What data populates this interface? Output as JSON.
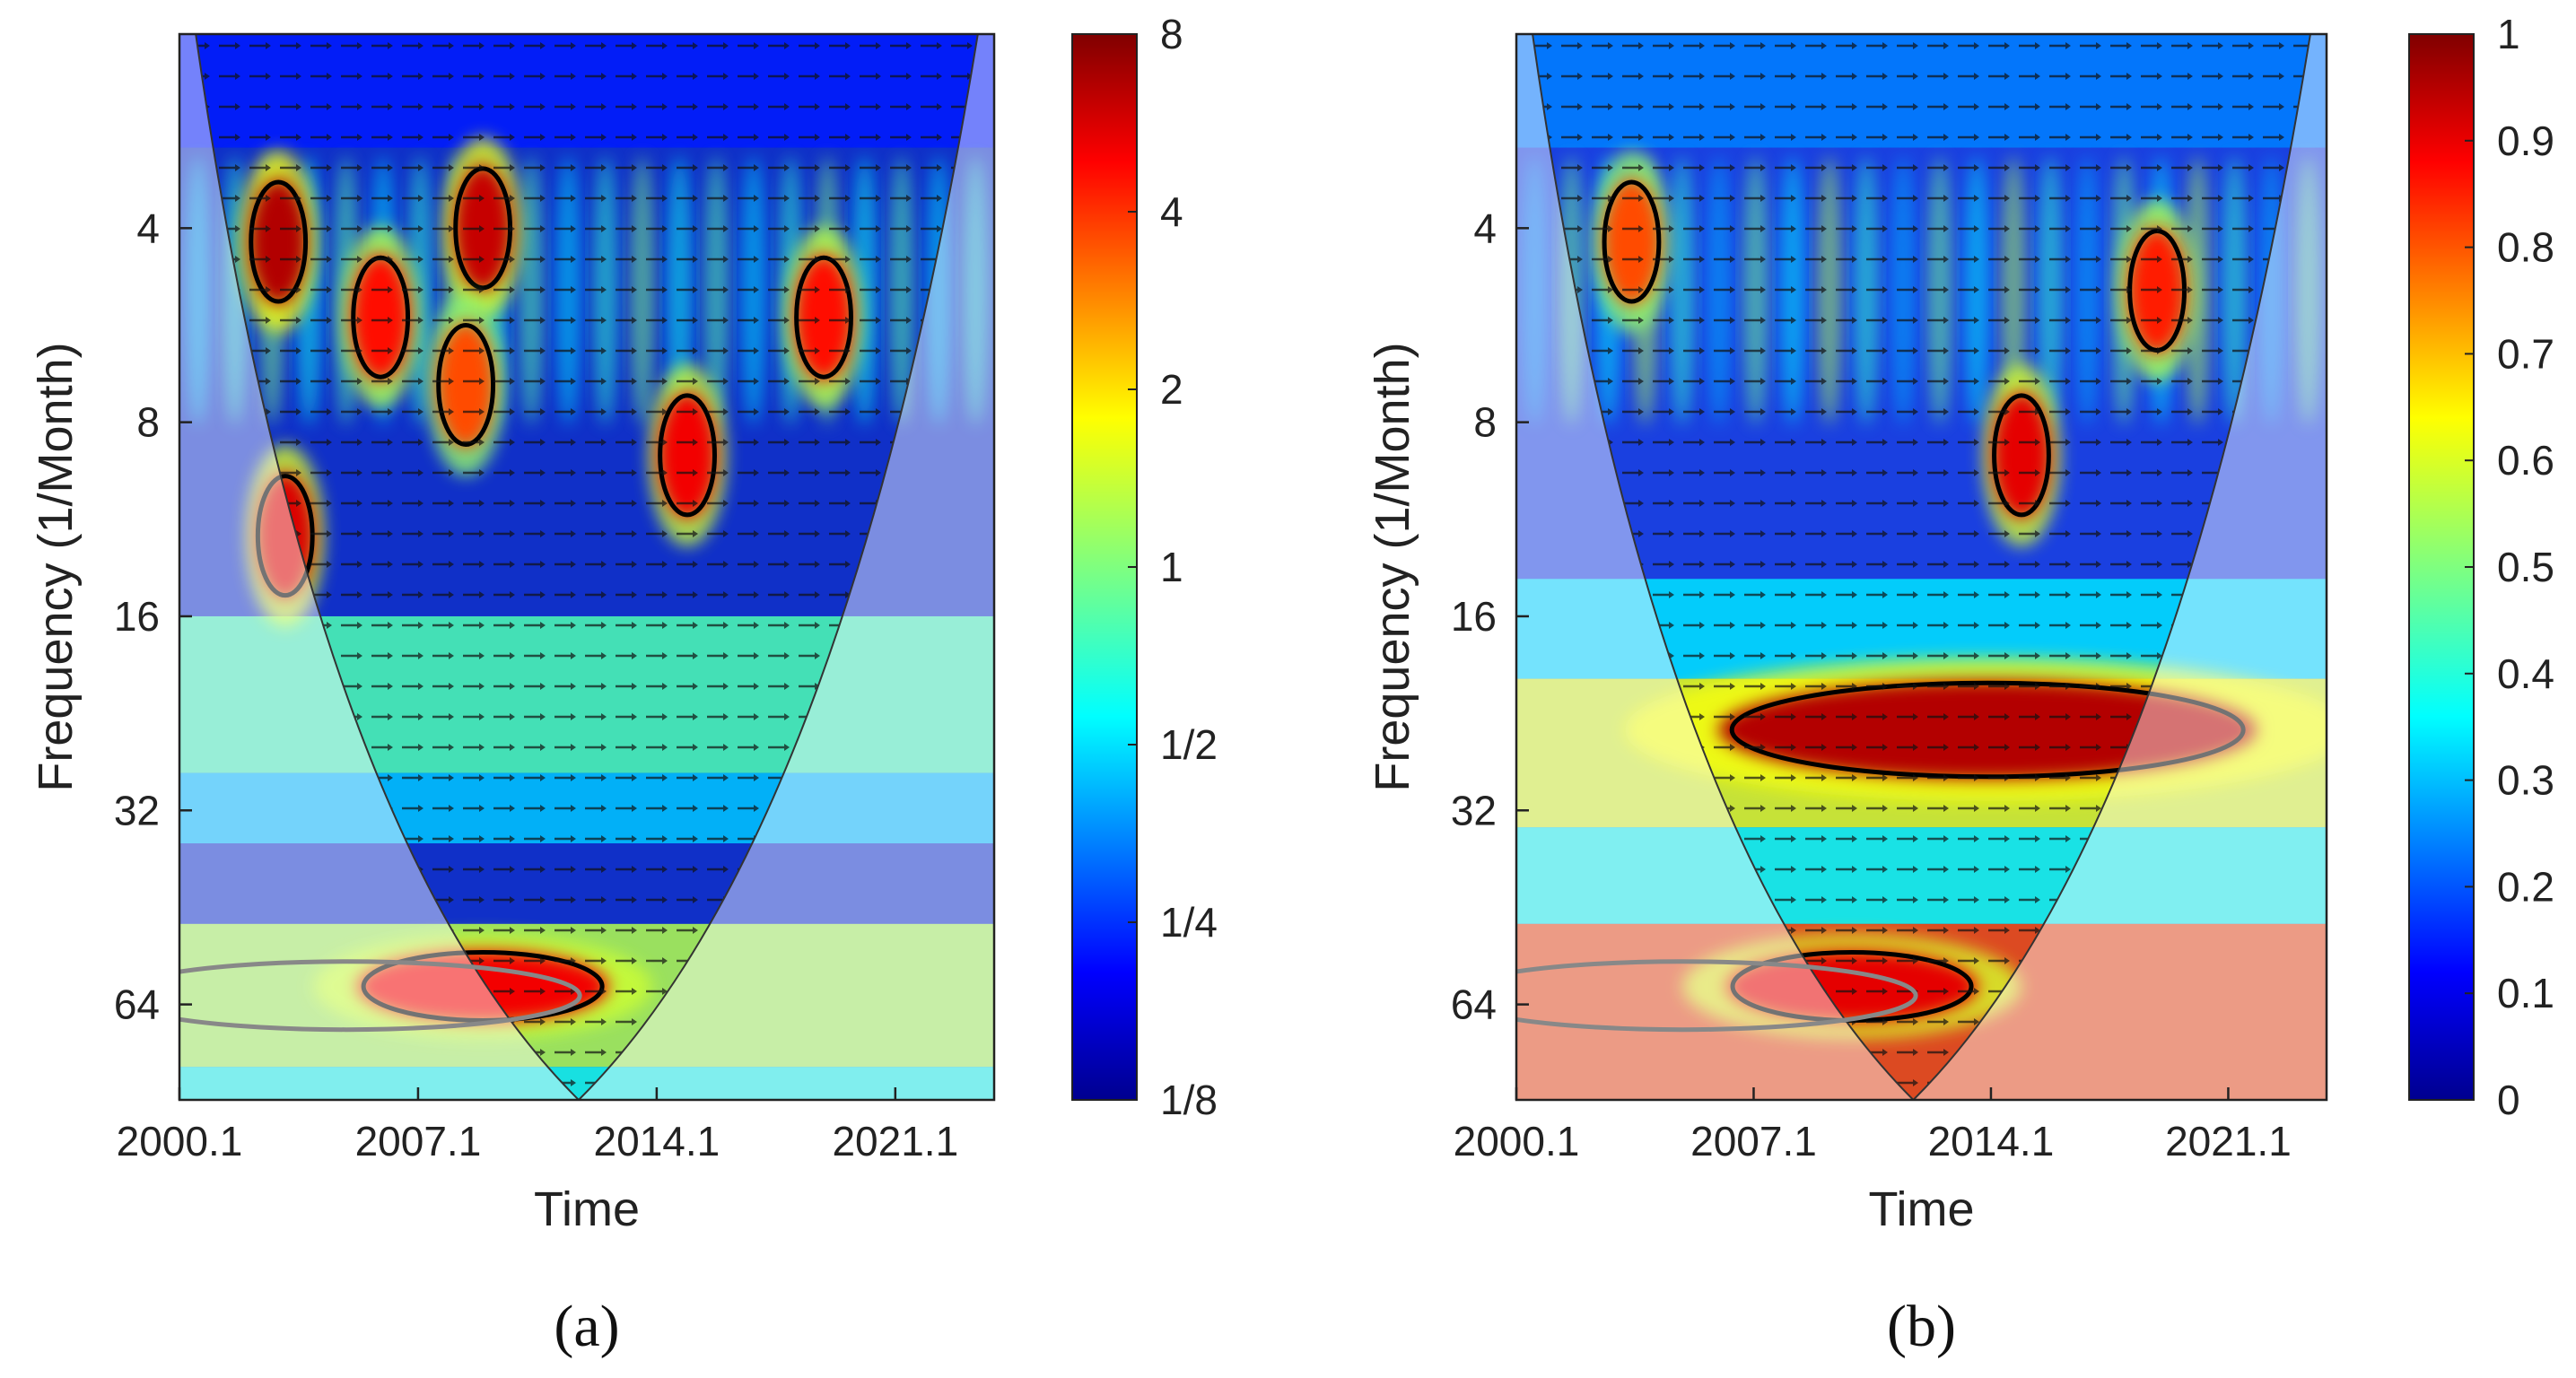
{
  "chart_data": [
    {
      "type": "heatmap",
      "panel_label": "a",
      "title": "",
      "xlabel": "Time",
      "ylabel": "Frequency (1/Month)",
      "x_ticks": [
        "2000.1",
        "2007.1",
        "2014.1",
        "2021.1"
      ],
      "x_range": [
        2000.1,
        2024.0
      ],
      "y_ticks": [
        "4",
        "8",
        "16",
        "32",
        "64"
      ],
      "y_scale": "log2",
      "y_range": [
        2,
        90
      ],
      "colorbar_ticks": [
        "8",
        "4",
        "2",
        "1",
        "1/2",
        "1/4",
        "1/8"
      ],
      "colorbar_range": [
        0.125,
        8
      ],
      "colormap": "jet",
      "contours": "black = significant region, grey = significant outside cone of influence",
      "hotspots": [
        {
          "time": 2003.0,
          "period": 4.2,
          "value": 6.5
        },
        {
          "time": 2003.2,
          "period": 12.0,
          "value": 5.5
        },
        {
          "time": 2009.0,
          "period": 4.0,
          "value": 6.0
        },
        {
          "time": 2006.0,
          "period": 5.5,
          "value": 4.5
        },
        {
          "time": 2008.5,
          "period": 7.0,
          "value": 3.5
        },
        {
          "time": 2015.0,
          "period": 9.0,
          "value": 5.0
        },
        {
          "time": 2019.0,
          "period": 5.5,
          "value": 4.5
        },
        {
          "time": 2009.0,
          "period": 60.0,
          "value": 5.0
        }
      ]
    },
    {
      "type": "heatmap",
      "panel_label": "b",
      "title": "",
      "xlabel": "Time",
      "ylabel": "Frequency (1/Month)",
      "x_ticks": [
        "2000.1",
        "2007.1",
        "2014.1",
        "2021.1"
      ],
      "x_range": [
        2000.1,
        2024.0
      ],
      "y_ticks": [
        "4",
        "8",
        "16",
        "32",
        "64"
      ],
      "y_scale": "log2",
      "y_range": [
        2,
        90
      ],
      "colorbar_ticks": [
        "1",
        "0.9",
        "0.8",
        "0.7",
        "0.6",
        "0.5",
        "0.4",
        "0.3",
        "0.2",
        "0.1",
        "0"
      ],
      "colorbar_range": [
        0,
        1
      ],
      "colormap": "jet",
      "contours": "black = significant coherence, grey = significant outside cone of influence",
      "hotspots": [
        {
          "time": 2015.0,
          "period": 9.0,
          "value": 0.9
        },
        {
          "time": 2019.0,
          "period": 5.0,
          "value": 0.85
        },
        {
          "time": 2014.0,
          "period": 24.0,
          "value": 0.95
        },
        {
          "time": 2010.0,
          "period": 60.0,
          "value": 0.9
        },
        {
          "time": 2003.5,
          "period": 4.2,
          "value": 0.8
        }
      ]
    }
  ],
  "colors": {
    "axis": "#222222",
    "contour": "#000000",
    "coi_contour": "#888888"
  }
}
